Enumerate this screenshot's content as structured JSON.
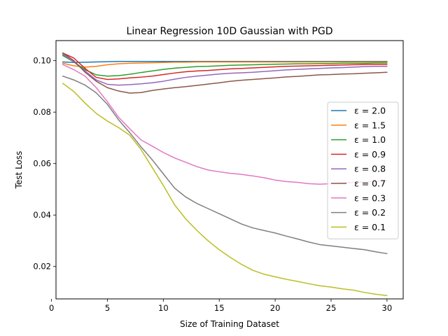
{
  "chart_data": {
    "type": "line",
    "title": "Linear Regression 10D Gaussian with PGD",
    "xlabel": "Size of Training Dataset",
    "ylabel": "Test Loss",
    "xlim": [
      0.4,
      31.45
    ],
    "ylim": [
      0.0074,
      0.1078
    ],
    "xticks": [
      0,
      5,
      10,
      15,
      20,
      25,
      30
    ],
    "yticks": [
      0.02,
      0.04,
      0.06,
      0.08,
      0.1
    ],
    "ytick_labels": [
      "0.02",
      "0.04",
      "0.06",
      "0.08",
      "0.10"
    ],
    "grid": false,
    "legend_position": "center-right",
    "x": [
      1,
      2,
      3,
      4,
      5,
      6,
      7,
      8,
      9,
      10,
      11,
      12,
      13,
      14,
      15,
      16,
      17,
      18,
      19,
      20,
      21,
      22,
      23,
      24,
      25,
      26,
      27,
      28,
      29,
      30
    ],
    "series": [
      {
        "name": "ε = 2.0",
        "color": "#1f77b4",
        "values": [
          0.0995,
          0.0993,
          0.0994,
          0.0995,
          0.0996,
          0.0997,
          0.0997,
          0.0997,
          0.0997,
          0.0997,
          0.0997,
          0.0997,
          0.0997,
          0.0997,
          0.0997,
          0.0997,
          0.0997,
          0.0997,
          0.0997,
          0.0997,
          0.0997,
          0.0997,
          0.0997,
          0.0997,
          0.0997,
          0.0997,
          0.0997,
          0.0997,
          0.0997,
          0.0997
        ]
      },
      {
        "name": "ε = 1.5",
        "color": "#ff7f0e",
        "values": [
          0.099,
          0.098,
          0.0975,
          0.0978,
          0.0984,
          0.0988,
          0.099,
          0.0991,
          0.0992,
          0.0993,
          0.0994,
          0.0994,
          0.0995,
          0.0995,
          0.0995,
          0.0995,
          0.0995,
          0.0995,
          0.0995,
          0.0995,
          0.0995,
          0.0995,
          0.0995,
          0.0995,
          0.0995,
          0.0995,
          0.0995,
          0.0995,
          0.0995,
          0.0995
        ]
      },
      {
        "name": "ε = 1.0",
        "color": "#2ca02c",
        "values": [
          0.102,
          0.0995,
          0.0965,
          0.0945,
          0.094,
          0.0942,
          0.0947,
          0.0954,
          0.096,
          0.0966,
          0.0971,
          0.0974,
          0.0977,
          0.0978,
          0.098,
          0.0982,
          0.0983,
          0.0984,
          0.0985,
          0.0986,
          0.0987,
          0.0988,
          0.0988,
          0.0989,
          0.0989,
          0.099,
          0.099,
          0.099,
          0.0991,
          0.0991
        ]
      },
      {
        "name": "ε = 0.9",
        "color": "#d62728",
        "values": [
          0.103,
          0.101,
          0.097,
          0.0935,
          0.0927,
          0.0929,
          0.0933,
          0.0936,
          0.094,
          0.0946,
          0.0952,
          0.0957,
          0.096,
          0.0962,
          0.0965,
          0.0968,
          0.097,
          0.0972,
          0.0974,
          0.0976,
          0.0978,
          0.0979,
          0.098,
          0.0981,
          0.0982,
          0.0983,
          0.0984,
          0.0985,
          0.0985,
          0.0985
        ]
      },
      {
        "name": "ε = 0.8",
        "color": "#9467bd",
        "values": [
          0.1025,
          0.0995,
          0.096,
          0.0925,
          0.0908,
          0.0905,
          0.0907,
          0.091,
          0.0914,
          0.092,
          0.0928,
          0.0935,
          0.094,
          0.0944,
          0.0948,
          0.0951,
          0.0953,
          0.0955,
          0.0958,
          0.0961,
          0.0964,
          0.0966,
          0.0968,
          0.097,
          0.0972,
          0.0973,
          0.0975,
          0.0977,
          0.0978,
          0.0978
        ]
      },
      {
        "name": "ε = 0.7",
        "color": "#8c564b",
        "values": [
          0.103,
          0.1,
          0.0955,
          0.092,
          0.0895,
          0.0882,
          0.0874,
          0.0876,
          0.0884,
          0.089,
          0.0895,
          0.0899,
          0.0904,
          0.0909,
          0.0914,
          0.092,
          0.0924,
          0.0927,
          0.093,
          0.0933,
          0.0937,
          0.0939,
          0.0942,
          0.0945,
          0.0946,
          0.0948,
          0.0949,
          0.0951,
          0.0953,
          0.0955
        ]
      },
      {
        "name": "ε = 0.3",
        "color": "#e377c2",
        "values": [
          0.0985,
          0.0965,
          0.094,
          0.0895,
          0.084,
          0.078,
          0.0735,
          0.0692,
          0.0668,
          0.0643,
          0.0622,
          0.0605,
          0.0588,
          0.0575,
          0.0568,
          0.0562,
          0.0558,
          0.0552,
          0.0545,
          0.0536,
          0.053,
          0.0527,
          0.0522,
          0.052,
          0.0522,
          0.0525,
          0.0527,
          0.0529,
          0.053,
          0.0533
        ]
      },
      {
        "name": "ε = 0.2",
        "color": "#7f7f7f",
        "values": [
          0.094,
          0.0925,
          0.0905,
          0.0875,
          0.083,
          0.077,
          0.072,
          0.0665,
          0.0615,
          0.056,
          0.0505,
          0.047,
          0.0445,
          0.0425,
          0.0405,
          0.0385,
          0.0365,
          0.035,
          0.034,
          0.033,
          0.0318,
          0.0307,
          0.0295,
          0.0285,
          0.028,
          0.0275,
          0.027,
          0.0265,
          0.0257,
          0.025
        ]
      },
      {
        "name": "ε = 0.1",
        "color": "#bcbd22",
        "values": [
          0.0912,
          0.088,
          0.0835,
          0.0795,
          0.0765,
          0.074,
          0.071,
          0.0655,
          0.0585,
          0.0515,
          0.044,
          0.0385,
          0.034,
          0.03,
          0.0265,
          0.0235,
          0.0208,
          0.0185,
          0.017,
          0.016,
          0.015,
          0.0142,
          0.0133,
          0.0125,
          0.012,
          0.0113,
          0.0108,
          0.0099,
          0.0092,
          0.0087
        ]
      }
    ]
  }
}
